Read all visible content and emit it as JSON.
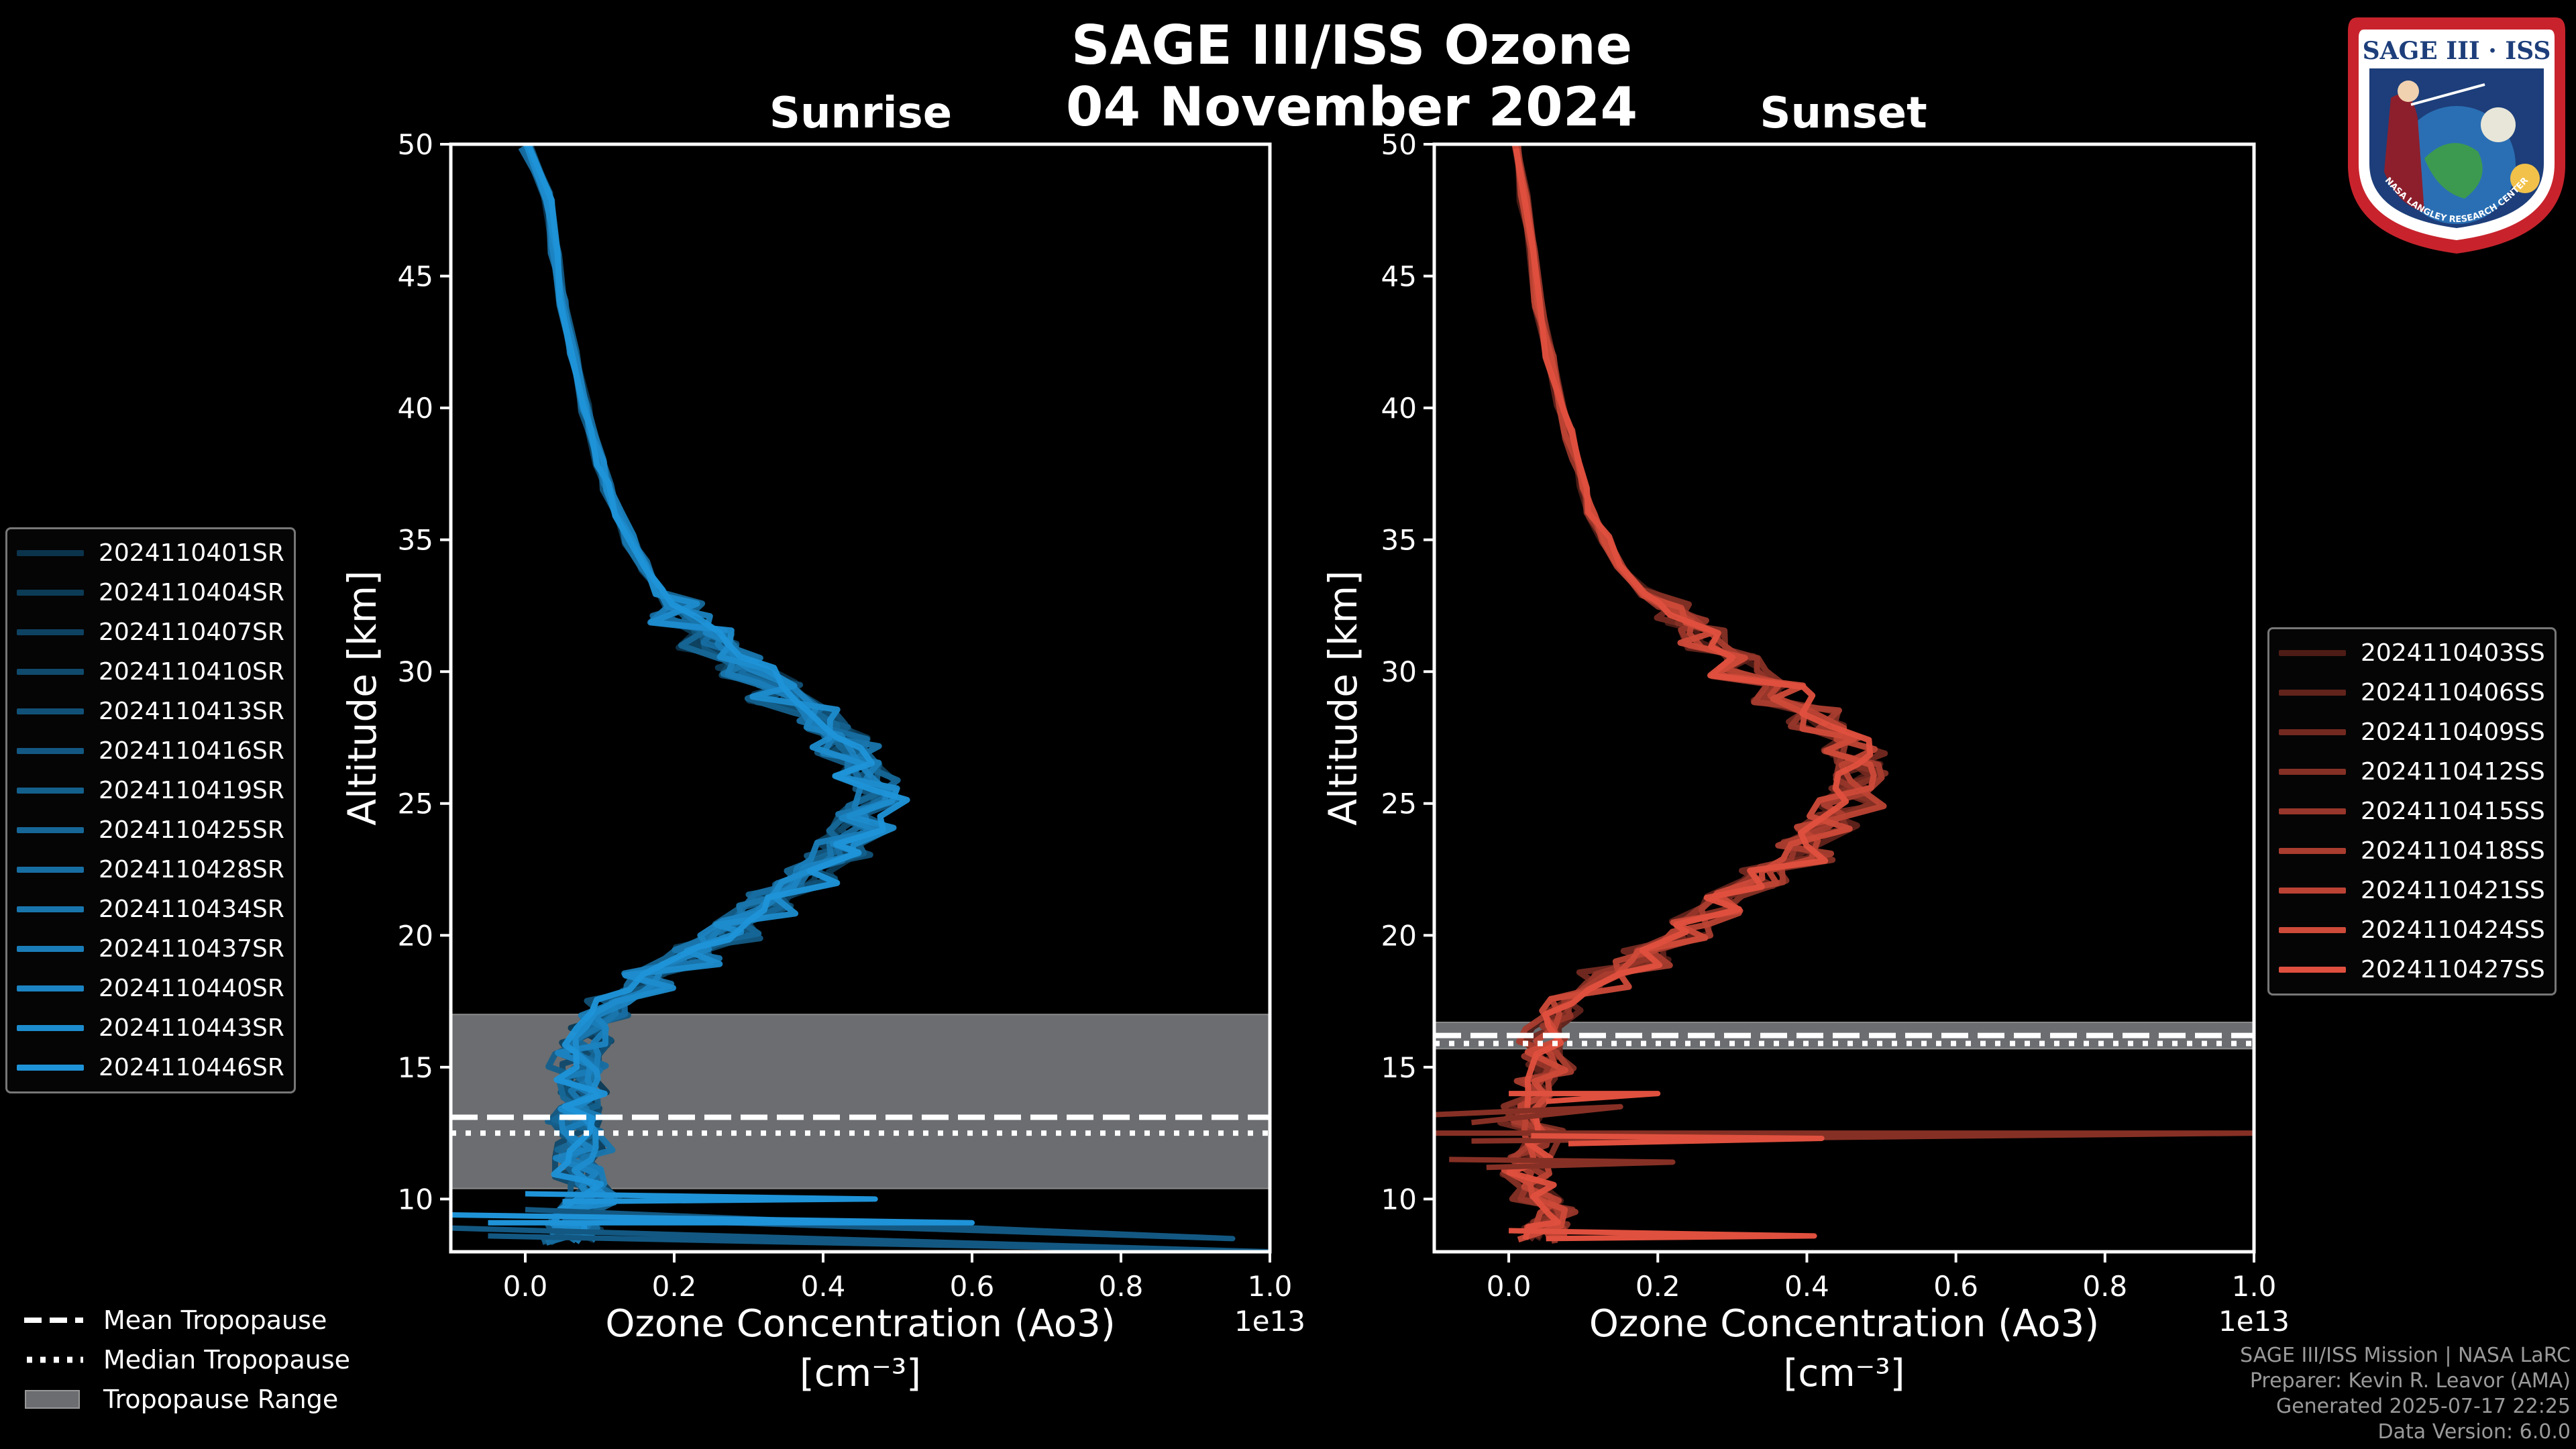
{
  "title_line1": "SAGE III/ISS Ozone",
  "title_line2": "04 November 2024",
  "colors": {
    "sunrise": "#1f93d8",
    "sunset": "#e0503e",
    "tropopause_fill": "#6b6d70",
    "background": "#000000"
  },
  "chart_data": [
    {
      "type": "line",
      "title": "Sunrise",
      "xlabel_line1": "Ozone Concentration (Ao3)",
      "xlabel_line2": "[cm⁻³]",
      "ylabel": "Altitude [km]",
      "xlim": [
        -0.1,
        1.0
      ],
      "ylim": [
        8,
        50
      ],
      "x_scale_label": "1e13",
      "xticks": [
        0.0,
        0.2,
        0.4,
        0.6,
        0.8,
        1.0
      ],
      "xtick_labels": [
        "0.0",
        "0.2",
        "0.4",
        "0.6",
        "0.8",
        "1.0"
      ],
      "yticks": [
        10,
        15,
        20,
        25,
        30,
        35,
        40,
        45,
        50
      ],
      "ytick_labels": [
        "10",
        "15",
        "20",
        "25",
        "30",
        "35",
        "40",
        "45",
        "50"
      ],
      "tropopause": {
        "mean": 13.1,
        "median": 12.5,
        "range": [
          10.4,
          17.0
        ]
      },
      "legend_title_items": [
        "2024110401SR",
        "2024110404SR",
        "2024110407SR",
        "2024110410SR",
        "2024110413SR",
        "2024110416SR",
        "2024110419SR",
        "2024110425SR",
        "2024110428SR",
        "2024110434SR",
        "2024110437SR",
        "2024110440SR",
        "2024110443SR",
        "2024110446SR"
      ],
      "series_shape": {
        "altitude": [
          8.5,
          9,
          10,
          11,
          12,
          13,
          14,
          15,
          16,
          17,
          18,
          19,
          20,
          21,
          22,
          23,
          24,
          25,
          26,
          27,
          28,
          29,
          30,
          31,
          32,
          33,
          34,
          35,
          36,
          37,
          38,
          39,
          40,
          42,
          44,
          46,
          48,
          50
        ],
        "ozone_1e13": [
          0.06,
          0.07,
          0.09,
          0.07,
          0.08,
          0.07,
          0.07,
          0.07,
          0.08,
          0.11,
          0.16,
          0.22,
          0.28,
          0.33,
          0.38,
          0.42,
          0.45,
          0.47,
          0.46,
          0.43,
          0.39,
          0.34,
          0.29,
          0.25,
          0.21,
          0.18,
          0.16,
          0.14,
          0.125,
          0.11,
          0.1,
          0.09,
          0.08,
          0.065,
          0.05,
          0.04,
          0.03,
          0.0
        ]
      }
    },
    {
      "type": "line",
      "title": "Sunset",
      "xlabel_line1": "Ozone Concentration (Ao3)",
      "xlabel_line2": "[cm⁻³]",
      "ylabel": "Altitude [km]",
      "xlim": [
        -0.1,
        1.0
      ],
      "ylim": [
        8,
        50
      ],
      "x_scale_label": "1e13",
      "xticks": [
        0.0,
        0.2,
        0.4,
        0.6,
        0.8,
        1.0
      ],
      "xtick_labels": [
        "0.0",
        "0.2",
        "0.4",
        "0.6",
        "0.8",
        "1.0"
      ],
      "yticks": [
        10,
        15,
        20,
        25,
        30,
        35,
        40,
        45,
        50
      ],
      "ytick_labels": [
        "10",
        "15",
        "20",
        "25",
        "30",
        "35",
        "40",
        "45",
        "50"
      ],
      "tropopause": {
        "mean": 16.2,
        "median": 15.9,
        "range": [
          15.7,
          16.7
        ]
      },
      "legend_title_items": [
        "2024110403SS",
        "2024110406SS",
        "2024110409SS",
        "2024110412SS",
        "2024110415SS",
        "2024110418SS",
        "2024110421SS",
        "2024110424SS",
        "2024110427SS"
      ],
      "series_shape": {
        "altitude": [
          8.5,
          9,
          10,
          11,
          12,
          13,
          14,
          15,
          16,
          17,
          18,
          19,
          20,
          21,
          22,
          23,
          24,
          25,
          26,
          27,
          28,
          29,
          30,
          31,
          32,
          33,
          34,
          35,
          36,
          37,
          38,
          39,
          40,
          42,
          44,
          46,
          48,
          50
        ],
        "ozone_1e13": [
          0.05,
          0.06,
          0.04,
          0.03,
          0.05,
          0.02,
          0.04,
          0.05,
          0.04,
          0.07,
          0.12,
          0.18,
          0.24,
          0.29,
          0.34,
          0.39,
          0.43,
          0.46,
          0.47,
          0.46,
          0.42,
          0.37,
          0.31,
          0.26,
          0.22,
          0.18,
          0.15,
          0.13,
          0.11,
          0.1,
          0.09,
          0.08,
          0.07,
          0.055,
          0.04,
          0.03,
          0.02,
          0.01
        ]
      }
    }
  ],
  "tropopause_legend": {
    "mean": "Mean Tropopause",
    "median": "Median Tropopause",
    "range": "Tropopause Range"
  },
  "footer": {
    "line1": "SAGE III/ISS Mission | NASA LaRC",
    "line2": "Preparer: Kevin R. Leavor (AMA)",
    "line3": "Generated 2025-07-17 22:25",
    "line4": "Data Version: 6.0.0"
  },
  "logo": {
    "top_text": "SAGE III · ISS",
    "bottom_text": "NASA LANGLEY RESEARCH CENTER"
  }
}
